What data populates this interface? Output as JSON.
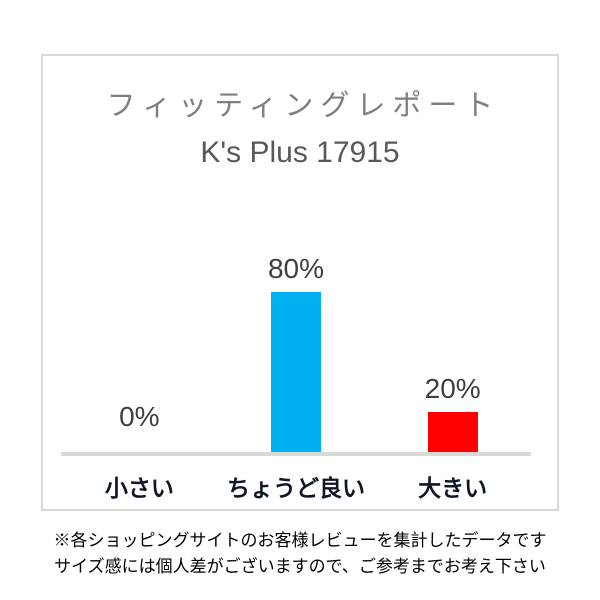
{
  "chart_data": {
    "type": "bar",
    "title": "フィッティングレポート",
    "subtitle": "K's Plus 17915",
    "categories": [
      "小さい",
      "ちょうど良い",
      "大きい"
    ],
    "values": [
      0,
      80,
      20
    ],
    "value_labels": [
      "0%",
      "80%",
      "20%"
    ],
    "bar_colors": [
      "#00B0F0",
      "#00B0F0",
      "#FF0000"
    ],
    "ylim": [
      0,
      100
    ],
    "grid": false,
    "legend": false,
    "annotations": [
      "※各ショッピングサイトのお客様レビューを集計したデータです",
      "サイズ感には個人差がございますので、ご参考までお考え下さい"
    ]
  },
  "colors": {
    "card_border": "#D9D9D9",
    "axis_line": "#D9D9D9",
    "title_gray": "#7F7F7F",
    "subtitle_gray": "#585858",
    "value_label_gray": "#3F3F3F",
    "category_label": "#0E1726",
    "bar_blue": "#00B0F0",
    "bar_red": "#FF0000"
  }
}
